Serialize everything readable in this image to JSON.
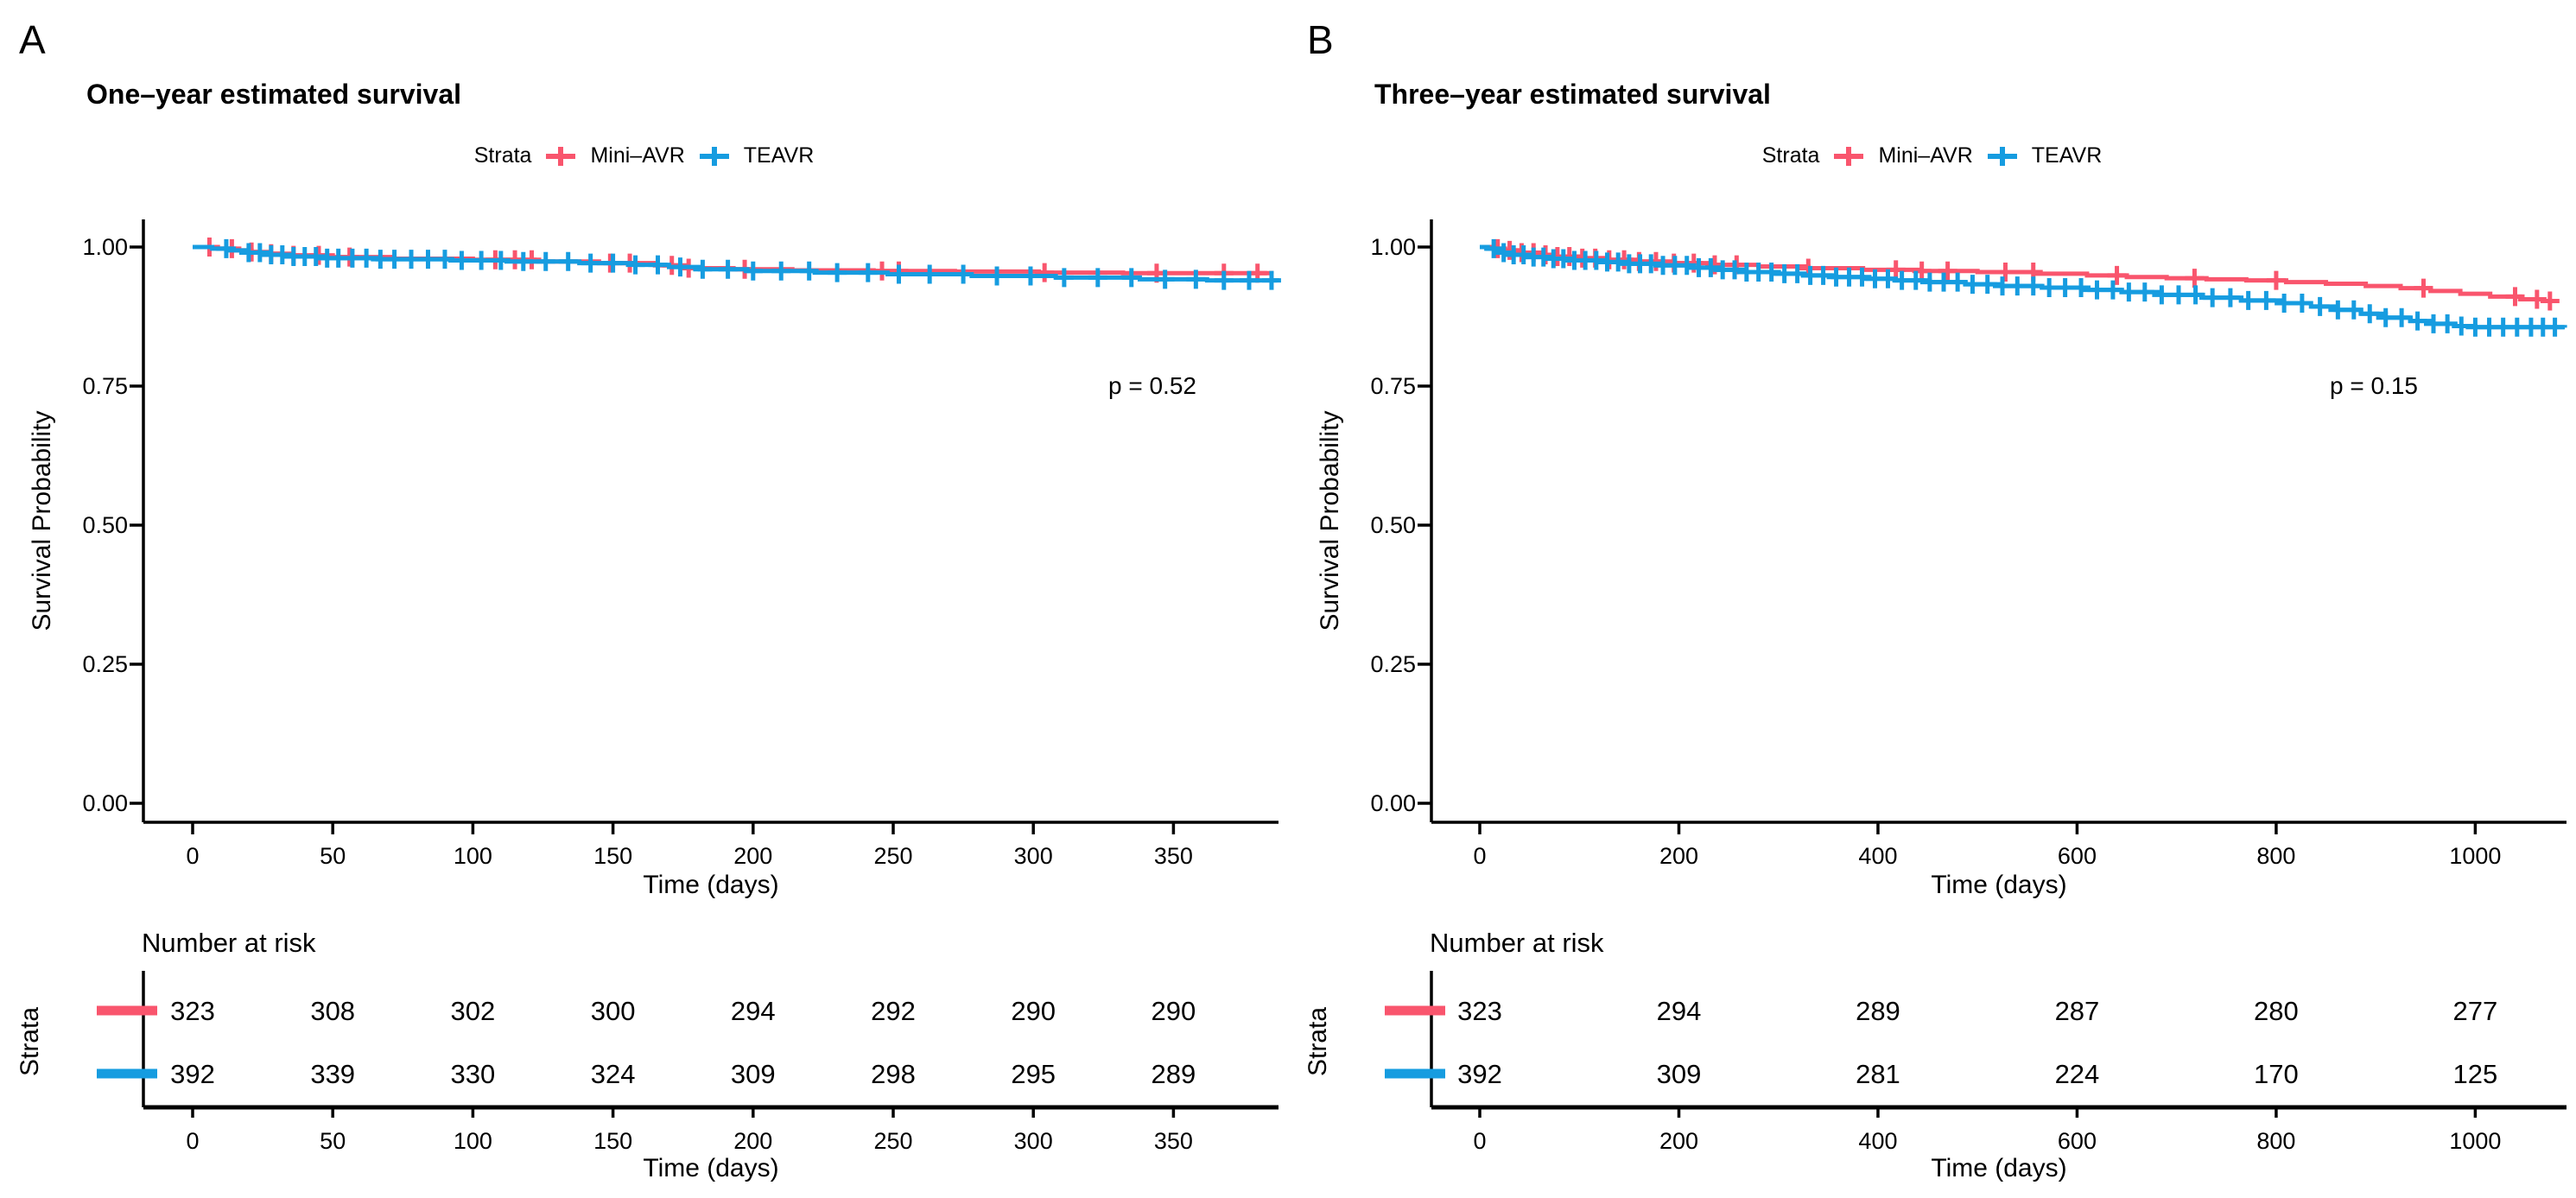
{
  "figure": {
    "background": "#FFFFFF",
    "axis_color": "#000000",
    "text_color": "#000000",
    "strata_colors": {
      "mini_avr": "#F9556D",
      "teavr": "#169CE0"
    }
  },
  "chart_data": [
    {
      "type": "line",
      "variant": "kaplan_meier_step",
      "panel_label": "A",
      "title": "One–year estimated survival",
      "p_value": "p = 0.52",
      "xlabel": "Time (days)",
      "ylabel": "Survival Probability",
      "grid": false,
      "legend": {
        "title": "Strata",
        "position": "top",
        "entries": [
          {
            "label": "Mini–AVR",
            "color": "#F9556D"
          },
          {
            "label": "TEAVR",
            "color": "#169CE0"
          }
        ]
      },
      "x_ticks": [
        0,
        50,
        100,
        150,
        200,
        250,
        300,
        350
      ],
      "xlim": [
        -17,
        390
      ],
      "ylim": [
        0,
        1
      ],
      "y_ticks": [
        [
          "0.00",
          0.0
        ],
        [
          "0.25",
          0.25
        ],
        [
          "0.50",
          0.5
        ],
        [
          "0.75",
          0.75
        ],
        [
          "1.00",
          1.0
        ]
      ],
      "series": [
        {
          "name": "Mini–AVR",
          "color": "#F9556D",
          "steps": [
            [
              0,
              1.0
            ],
            [
              9,
              0.997
            ],
            [
              15,
              0.994
            ],
            [
              21,
              0.991
            ],
            [
              27,
              0.988
            ],
            [
              36,
              0.985
            ],
            [
              50,
              0.982
            ],
            [
              72,
              0.979
            ],
            [
              100,
              0.977
            ],
            [
              122,
              0.974
            ],
            [
              145,
              0.971
            ],
            [
              165,
              0.967
            ],
            [
              176,
              0.962
            ],
            [
              193,
              0.96
            ],
            [
              214,
              0.958
            ],
            [
              243,
              0.957
            ],
            [
              272,
              0.956
            ],
            [
              302,
              0.954
            ],
            [
              332,
              0.953
            ],
            [
              385,
              0.952
            ]
          ],
          "censor_times": [
            6,
            14,
            21,
            28,
            36,
            45,
            56,
            108,
            115,
            121,
            149,
            156,
            171,
            177,
            197,
            246,
            252,
            304,
            344,
            368,
            380
          ]
        },
        {
          "name": "TEAVR",
          "color": "#169CE0",
          "steps": [
            [
              0,
              1.0
            ],
            [
              7,
              0.997
            ],
            [
              13,
              0.994
            ],
            [
              19,
              0.99
            ],
            [
              25,
              0.986
            ],
            [
              33,
              0.983
            ],
            [
              46,
              0.98
            ],
            [
              66,
              0.978
            ],
            [
              92,
              0.976
            ],
            [
              112,
              0.974
            ],
            [
              138,
              0.971
            ],
            [
              158,
              0.968
            ],
            [
              170,
              0.964
            ],
            [
              181,
              0.96
            ],
            [
              198,
              0.957
            ],
            [
              222,
              0.954
            ],
            [
              248,
              0.951
            ],
            [
              278,
              0.948
            ],
            [
              308,
              0.945
            ],
            [
              338,
              0.942
            ],
            [
              362,
              0.94
            ],
            [
              387,
              0.938
            ]
          ],
          "censor_times": [
            12,
            20,
            24,
            28,
            32,
            36,
            40,
            44,
            48,
            52,
            57,
            62,
            67,
            72,
            78,
            84,
            90,
            96,
            103,
            110,
            118,
            126,
            134,
            142,
            150,
            158,
            166,
            174,
            182,
            191,
            200,
            210,
            220,
            230,
            241,
            252,
            263,
            275,
            287,
            299,
            311,
            323,
            335,
            347,
            358,
            368,
            377,
            385
          ]
        }
      ],
      "risk_table": {
        "title": "Number at risk",
        "ylabel": "Strata",
        "xlabel": "Time (days)",
        "times": [
          0,
          50,
          100,
          150,
          200,
          250,
          300,
          350
        ],
        "rows": [
          {
            "name": "Mini–AVR",
            "color": "#F9556D",
            "values": [
              323,
              308,
              302,
              300,
              294,
              292,
              290,
              290
            ]
          },
          {
            "name": "TEAVR",
            "color": "#169CE0",
            "values": [
              392,
              339,
              330,
              324,
              309,
              298,
              295,
              289
            ]
          }
        ]
      }
    },
    {
      "type": "line",
      "variant": "kaplan_meier_step",
      "panel_label": "B",
      "title": "Three–year estimated survival",
      "p_value": "p = 0.15",
      "xlabel": "Time (days)",
      "ylabel": "Survival Probability",
      "grid": false,
      "legend": {
        "title": "Strata",
        "position": "top",
        "entries": [
          {
            "label": "Mini–AVR",
            "color": "#F9556D"
          },
          {
            "label": "TEAVR",
            "color": "#169CE0"
          }
        ]
      },
      "x_ticks": [
        0,
        200,
        400,
        600,
        800,
        1000
      ],
      "xlim": [
        -55,
        1095
      ],
      "ylim": [
        0,
        1
      ],
      "y_ticks": [
        [
          "0.00",
          0.0
        ],
        [
          "0.25",
          0.25
        ],
        [
          "0.50",
          0.5
        ],
        [
          "0.75",
          0.75
        ],
        [
          "1.00",
          1.0
        ]
      ],
      "series": [
        {
          "name": "Mini–AVR",
          "color": "#F9556D",
          "steps": [
            [
              0,
              1.0
            ],
            [
              12,
              0.997
            ],
            [
              24,
              0.994
            ],
            [
              38,
              0.99
            ],
            [
              55,
              0.986
            ],
            [
              75,
              0.983
            ],
            [
              100,
              0.98
            ],
            [
              130,
              0.977
            ],
            [
              160,
              0.974
            ],
            [
              195,
              0.971
            ],
            [
              235,
              0.968
            ],
            [
              280,
              0.965
            ],
            [
              330,
              0.962
            ],
            [
              385,
              0.959
            ],
            [
              440,
              0.957
            ],
            [
              500,
              0.955
            ],
            [
              560,
              0.952
            ],
            [
              610,
              0.949
            ],
            [
              650,
              0.946
            ],
            [
              690,
              0.944
            ],
            [
              730,
              0.942
            ],
            [
              770,
              0.94
            ],
            [
              810,
              0.937
            ],
            [
              850,
              0.934
            ],
            [
              890,
              0.93
            ],
            [
              925,
              0.926
            ],
            [
              955,
              0.921
            ],
            [
              985,
              0.916
            ],
            [
              1015,
              0.911
            ],
            [
              1045,
              0.906
            ],
            [
              1068,
              0.903
            ],
            [
              1080,
              0.902
            ]
          ],
          "censor_times": [
            18,
            30,
            42,
            54,
            66,
            78,
            90,
            103,
            116,
            130,
            145,
            160,
            177,
            195,
            215,
            236,
            258,
            330,
            418,
            444,
            470,
            528,
            556,
            640,
            718,
            800,
            948,
            1040,
            1062,
            1075
          ]
        },
        {
          "name": "TEAVR",
          "color": "#169CE0",
          "steps": [
            [
              0,
              1.0
            ],
            [
              8,
              0.997
            ],
            [
              16,
              0.994
            ],
            [
              24,
              0.99
            ],
            [
              34,
              0.986
            ],
            [
              48,
              0.982
            ],
            [
              68,
              0.979
            ],
            [
              92,
              0.976
            ],
            [
              120,
              0.973
            ],
            [
              150,
              0.97
            ],
            [
              180,
              0.967
            ],
            [
              210,
              0.963
            ],
            [
              240,
              0.959
            ],
            [
              265,
              0.955
            ],
            [
              295,
              0.952
            ],
            [
              325,
              0.949
            ],
            [
              355,
              0.946
            ],
            [
              385,
              0.943
            ],
            [
              418,
              0.94
            ],
            [
              452,
              0.937
            ],
            [
              488,
              0.933
            ],
            [
              525,
              0.93
            ],
            [
              565,
              0.927
            ],
            [
              605,
              0.923
            ],
            [
              645,
              0.919
            ],
            [
              685,
              0.914
            ],
            [
              725,
              0.909
            ],
            [
              765,
              0.904
            ],
            [
              805,
              0.899
            ],
            [
              835,
              0.893
            ],
            [
              860,
              0.887
            ],
            [
              885,
              0.88
            ],
            [
              910,
              0.873
            ],
            [
              935,
              0.867
            ],
            [
              958,
              0.862
            ],
            [
              980,
              0.858
            ],
            [
              1000,
              0.856
            ],
            [
              1090,
              0.855
            ]
          ],
          "censor_times": [
            14,
            24,
            34,
            44,
            54,
            64,
            74,
            84,
            95,
            106,
            117,
            128,
            139,
            150,
            161,
            172,
            184,
            196,
            208,
            220,
            232,
            244,
            256,
            268,
            280,
            293,
            306,
            319,
            332,
            345,
            358,
            371,
            384,
            397,
            410,
            424,
            438,
            452,
            466,
            480,
            495,
            510,
            525,
            540,
            556,
            572,
            588,
            604,
            620,
            636,
            652,
            668,
            685,
            702,
            719,
            736,
            754,
            772,
            790,
            808,
            826,
            844,
            862,
            878,
            894,
            910,
            926,
            942,
            958,
            972,
            986,
            1000,
            1014,
            1028,
            1042,
            1056,
            1068,
            1080
          ]
        }
      ],
      "risk_table": {
        "title": "Number at risk",
        "ylabel": "Strata",
        "xlabel": "Time (days)",
        "times": [
          0,
          200,
          400,
          600,
          800,
          1000
        ],
        "rows": [
          {
            "name": "Mini–AVR",
            "color": "#F9556D",
            "values": [
              323,
              294,
              289,
              287,
              280,
              277
            ]
          },
          {
            "name": "TEAVR",
            "color": "#169CE0",
            "values": [
              392,
              309,
              281,
              224,
              170,
              125
            ]
          }
        ]
      }
    }
  ]
}
